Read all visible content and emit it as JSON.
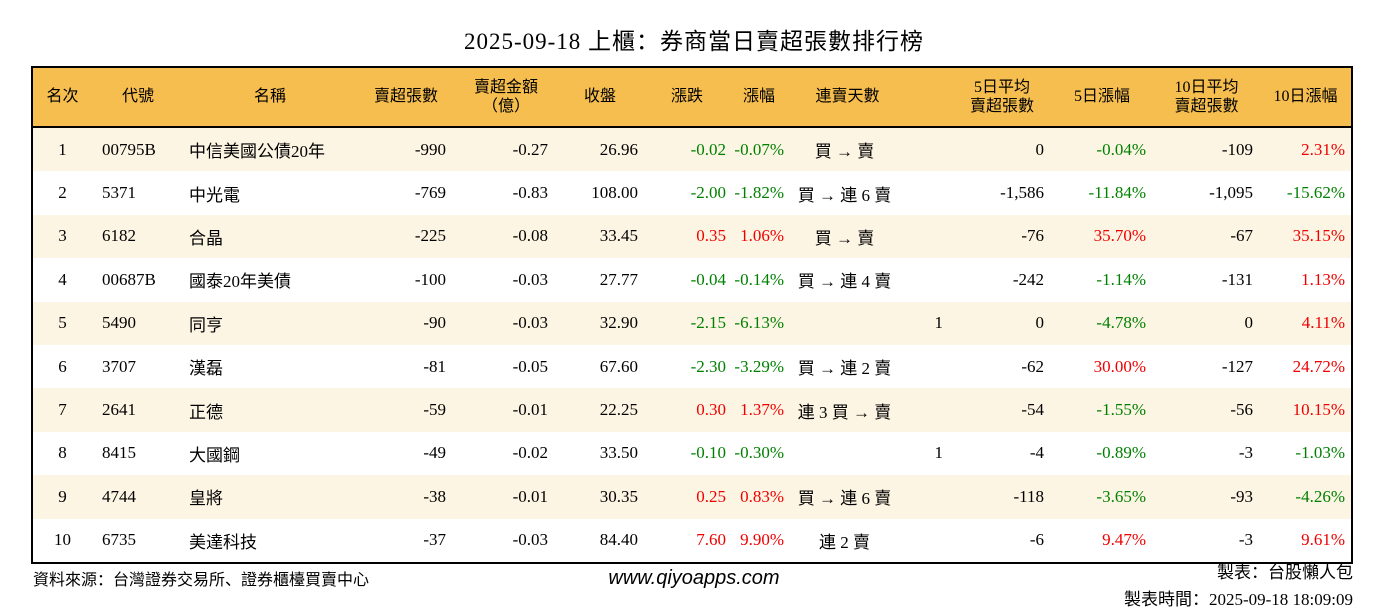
{
  "title": "2025-09-18 上櫃：券商當日賣超張數排行榜",
  "colors": {
    "header_bg": "#F6BE4F",
    "stripe_bg": "#FDF5E3",
    "up_red": "#EE0000",
    "down_green": "#008000",
    "border": "#000000"
  },
  "table": {
    "headers": [
      {
        "key": "rank",
        "lines": [
          "名次"
        ]
      },
      {
        "key": "code",
        "lines": [
          "代號"
        ]
      },
      {
        "key": "name",
        "lines": [
          "名稱"
        ]
      },
      {
        "key": "sell_volume",
        "lines": [
          "賣超張數"
        ]
      },
      {
        "key": "sell_amount",
        "lines": [
          "賣超金額",
          "（億）"
        ]
      },
      {
        "key": "close",
        "lines": [
          "收盤"
        ]
      },
      {
        "key": "change",
        "lines": [
          "漲跌"
        ]
      },
      {
        "key": "change_pct",
        "lines": [
          "漲幅"
        ]
      },
      {
        "key": "streak",
        "lines": [
          "連賣天數"
        ]
      },
      {
        "key": "avg5",
        "lines": [
          "5日平均",
          "賣超張數"
        ]
      },
      {
        "key": "pct5",
        "lines": [
          "5日漲幅"
        ]
      },
      {
        "key": "avg10",
        "lines": [
          "10日平均",
          "賣超張數"
        ]
      },
      {
        "key": "pct10",
        "lines": [
          "10日漲幅"
        ]
      }
    ],
    "rows": [
      {
        "rank": "1",
        "code": "00795B",
        "name": "中信美國公債20年",
        "sell_volume": "-990",
        "sell_amount": "-0.27",
        "close": "26.96",
        "change": "-0.02",
        "change_dir": "down",
        "change_pct": "-0.07%",
        "change_pct_dir": "down",
        "streak": "買 → 賣",
        "streak_numeric": false,
        "avg5": "0",
        "pct5": "-0.04%",
        "pct5_dir": "down",
        "avg10": "-109",
        "pct10": "2.31%",
        "pct10_dir": "up"
      },
      {
        "rank": "2",
        "code": "5371",
        "name": "中光電",
        "sell_volume": "-769",
        "sell_amount": "-0.83",
        "close": "108.00",
        "change": "-2.00",
        "change_dir": "down",
        "change_pct": "-1.82%",
        "change_pct_dir": "down",
        "streak": "買 → 連 6 賣",
        "streak_numeric": false,
        "avg5": "-1,586",
        "pct5": "-11.84%",
        "pct5_dir": "down",
        "avg10": "-1,095",
        "pct10": "-15.62%",
        "pct10_dir": "down"
      },
      {
        "rank": "3",
        "code": "6182",
        "name": "合晶",
        "sell_volume": "-225",
        "sell_amount": "-0.08",
        "close": "33.45",
        "change": "0.35",
        "change_dir": "up",
        "change_pct": "1.06%",
        "change_pct_dir": "up",
        "streak": "買 → 賣",
        "streak_numeric": false,
        "avg5": "-76",
        "pct5": "35.70%",
        "pct5_dir": "up",
        "avg10": "-67",
        "pct10": "35.15%",
        "pct10_dir": "up"
      },
      {
        "rank": "4",
        "code": "00687B",
        "name": "國泰20年美債",
        "sell_volume": "-100",
        "sell_amount": "-0.03",
        "close": "27.77",
        "change": "-0.04",
        "change_dir": "down",
        "change_pct": "-0.14%",
        "change_pct_dir": "down",
        "streak": "買 → 連 4 賣",
        "streak_numeric": false,
        "avg5": "-242",
        "pct5": "-1.14%",
        "pct5_dir": "down",
        "avg10": "-131",
        "pct10": "1.13%",
        "pct10_dir": "up"
      },
      {
        "rank": "5",
        "code": "5490",
        "name": "同亨",
        "sell_volume": "-90",
        "sell_amount": "-0.03",
        "close": "32.90",
        "change": "-2.15",
        "change_dir": "down",
        "change_pct": "-6.13%",
        "change_pct_dir": "down",
        "streak": "1",
        "streak_numeric": true,
        "avg5": "0",
        "pct5": "-4.78%",
        "pct5_dir": "down",
        "avg10": "0",
        "pct10": "4.11%",
        "pct10_dir": "up"
      },
      {
        "rank": "6",
        "code": "3707",
        "name": "漢磊",
        "sell_volume": "-81",
        "sell_amount": "-0.05",
        "close": "67.60",
        "change": "-2.30",
        "change_dir": "down",
        "change_pct": "-3.29%",
        "change_pct_dir": "down",
        "streak": "買 → 連 2 賣",
        "streak_numeric": false,
        "avg5": "-62",
        "pct5": "30.00%",
        "pct5_dir": "up",
        "avg10": "-127",
        "pct10": "24.72%",
        "pct10_dir": "up"
      },
      {
        "rank": "7",
        "code": "2641",
        "name": "正德",
        "sell_volume": "-59",
        "sell_amount": "-0.01",
        "close": "22.25",
        "change": "0.30",
        "change_dir": "up",
        "change_pct": "1.37%",
        "change_pct_dir": "up",
        "streak": "連 3 買 → 賣",
        "streak_numeric": false,
        "avg5": "-54",
        "pct5": "-1.55%",
        "pct5_dir": "down",
        "avg10": "-56",
        "pct10": "10.15%",
        "pct10_dir": "up"
      },
      {
        "rank": "8",
        "code": "8415",
        "name": "大國鋼",
        "sell_volume": "-49",
        "sell_amount": "-0.02",
        "close": "33.50",
        "change": "-0.10",
        "change_dir": "down",
        "change_pct": "-0.30%",
        "change_pct_dir": "down",
        "streak": "1",
        "streak_numeric": true,
        "avg5": "-4",
        "pct5": "-0.89%",
        "pct5_dir": "down",
        "avg10": "-3",
        "pct10": "-1.03%",
        "pct10_dir": "down"
      },
      {
        "rank": "9",
        "code": "4744",
        "name": "皇將",
        "sell_volume": "-38",
        "sell_amount": "-0.01",
        "close": "30.35",
        "change": "0.25",
        "change_dir": "up",
        "change_pct": "0.83%",
        "change_pct_dir": "up",
        "streak": "買 → 連 6 賣",
        "streak_numeric": false,
        "avg5": "-118",
        "pct5": "-3.65%",
        "pct5_dir": "down",
        "avg10": "-93",
        "pct10": "-4.26%",
        "pct10_dir": "down"
      },
      {
        "rank": "10",
        "code": "6735",
        "name": "美達科技",
        "sell_volume": "-37",
        "sell_amount": "-0.03",
        "close": "84.40",
        "change": "7.60",
        "change_dir": "up",
        "change_pct": "9.90%",
        "change_pct_dir": "up",
        "streak": "連 2 賣",
        "streak_numeric": false,
        "avg5": "-6",
        "pct5": "9.47%",
        "pct5_dir": "up",
        "avg10": "-3",
        "pct10": "9.61%",
        "pct10_dir": "up"
      }
    ]
  },
  "footer": {
    "source": "資料來源：台灣證券交易所、證券櫃檯買賣中心",
    "website": "www.qiyoapps.com",
    "author": "製表：台股懶人包",
    "timestamp": "製表時間：2025-09-18 18:09:09"
  }
}
